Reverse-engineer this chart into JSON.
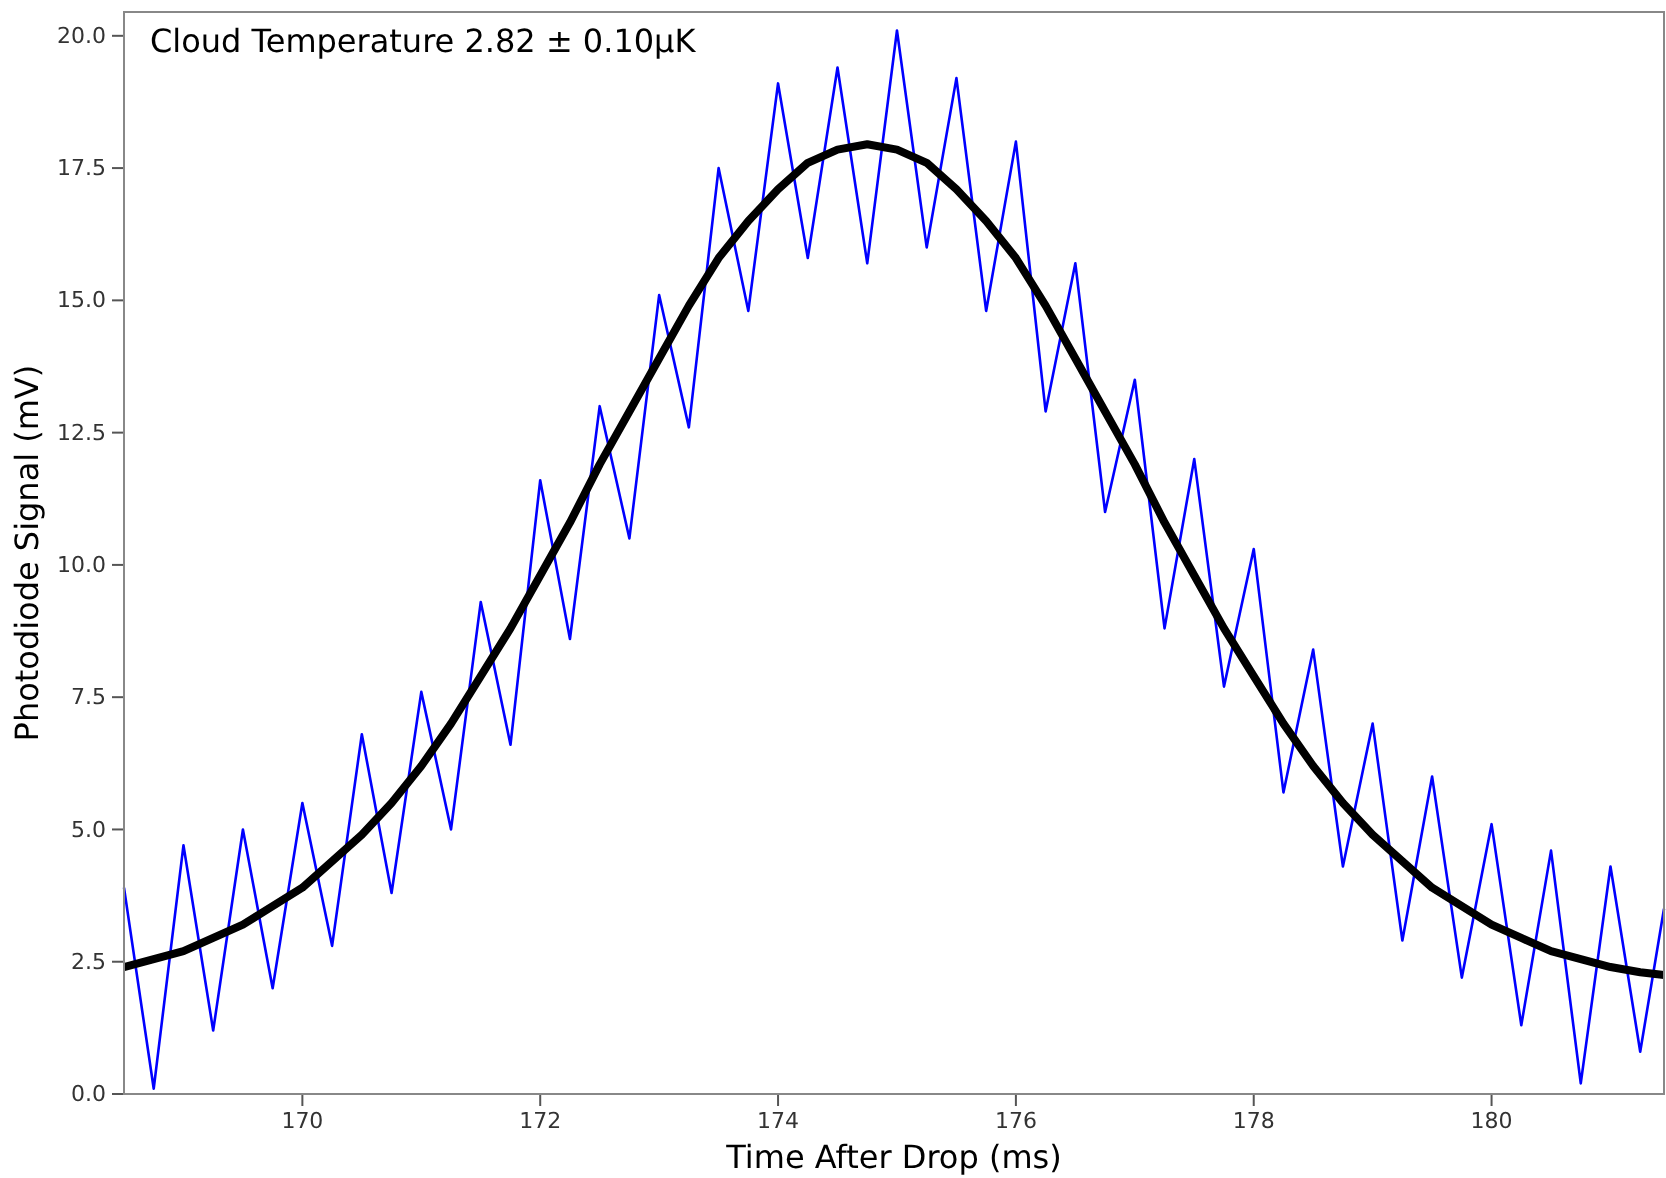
{
  "chart_data": {
    "type": "line",
    "xlabel": "Time After Drop (ms)",
    "ylabel": "Photodiode Signal (mV)",
    "annotations": [
      "Cloud Temperature 2.82 ± 0.10μK"
    ],
    "xlim": [
      168.5,
      181.45
    ],
    "xticks": [
      170,
      172,
      174,
      176,
      178,
      180
    ],
    "ylim": [
      0,
      20.45
    ],
    "yticks": [
      {
        "value": 0,
        "label": "0.0"
      },
      {
        "value": 2.5,
        "label": "2.5"
      },
      {
        "value": 5,
        "label": "5.0"
      },
      {
        "value": 7.5,
        "label": "7.5"
      },
      {
        "value": 10,
        "label": "10.0"
      },
      {
        "value": 12.5,
        "label": "12.5"
      },
      {
        "value": 15,
        "label": "15.0"
      },
      {
        "value": 17.5,
        "label": "17.5"
      },
      {
        "value": 20,
        "label": "20.0"
      }
    ],
    "grid": false,
    "marker": "none",
    "line_style": "solid",
    "series": [
      {
        "color": "#0000ff",
        "x": [
          168.5,
          168.75,
          169,
          169.25,
          169.5,
          169.75,
          170,
          170.25,
          170.5,
          170.75,
          171,
          171.25,
          171.5,
          171.75,
          172,
          172.25,
          172.5,
          172.75,
          173,
          173.25,
          173.5,
          173.75,
          174,
          174.25,
          174.5,
          174.75,
          175,
          175.25,
          175.5,
          175.75,
          176,
          176.25,
          176.5,
          176.75,
          177,
          177.25,
          177.5,
          177.75,
          178,
          178.25,
          178.5,
          178.75,
          179,
          179.25,
          179.5,
          179.75,
          180,
          180.25,
          180.5,
          180.75,
          181,
          181.25,
          181.45
        ],
        "values": [
          3.9,
          0.1,
          4.7,
          1.2,
          5.0,
          2.0,
          5.5,
          2.8,
          6.8,
          3.8,
          7.6,
          5.0,
          9.3,
          6.6,
          11.6,
          8.6,
          13.0,
          10.5,
          15.1,
          12.6,
          17.5,
          14.8,
          19.1,
          15.8,
          19.4,
          15.7,
          20.1,
          16.0,
          19.2,
          14.8,
          18.0,
          12.9,
          15.7,
          11.0,
          13.5,
          8.8,
          12.0,
          7.7,
          10.3,
          5.7,
          8.4,
          4.3,
          7.0,
          2.9,
          6.0,
          2.2,
          5.1,
          1.3,
          4.6,
          0.2,
          4.3,
          0.8,
          3.5
        ]
      },
      {
        "color": "#000000",
        "x": [
          168.5,
          168.75,
          169,
          169.25,
          169.5,
          169.75,
          170,
          170.25,
          170.5,
          170.75,
          171,
          171.25,
          171.5,
          171.75,
          172,
          172.25,
          172.5,
          172.75,
          173,
          173.25,
          173.5,
          173.75,
          174,
          174.25,
          174.5,
          174.75,
          175,
          175.25,
          175.5,
          175.75,
          176,
          176.25,
          176.5,
          176.75,
          177,
          177.25,
          177.5,
          177.75,
          178,
          178.25,
          178.5,
          178.75,
          179,
          179.25,
          179.5,
          179.75,
          180,
          180.25,
          180.5,
          180.75,
          181,
          181.25,
          181.45
        ],
        "values": [
          2.4,
          2.55,
          2.7,
          2.95,
          3.2,
          3.55,
          3.9,
          4.4,
          4.9,
          5.5,
          6.2,
          7.0,
          7.9,
          8.8,
          9.8,
          10.8,
          11.9,
          12.9,
          13.9,
          14.9,
          15.8,
          16.5,
          17.1,
          17.6,
          17.85,
          17.95,
          17.85,
          17.6,
          17.1,
          16.5,
          15.8,
          14.9,
          13.9,
          12.9,
          11.9,
          10.8,
          9.8,
          8.8,
          7.9,
          7.0,
          6.2,
          5.5,
          4.9,
          4.4,
          3.9,
          3.55,
          3.2,
          2.95,
          2.7,
          2.55,
          2.4,
          2.3,
          2.25
        ]
      }
    ]
  }
}
